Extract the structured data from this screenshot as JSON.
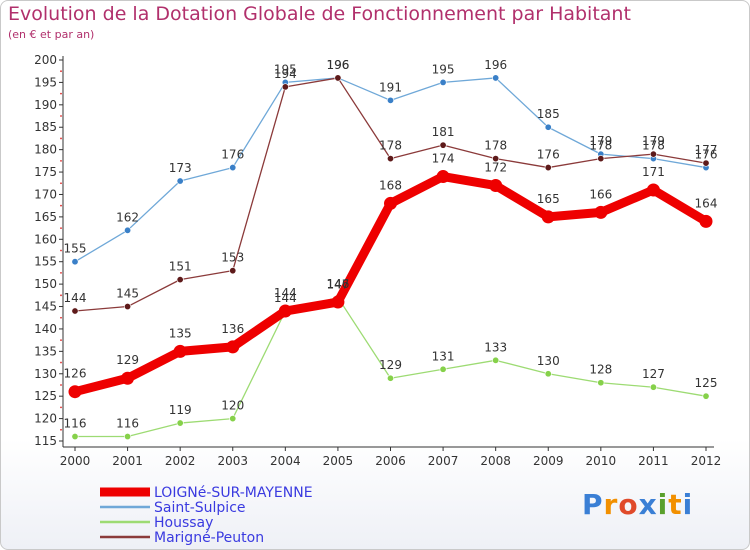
{
  "title": "Evolution de la Dotation Globale de Fonctionnement par Habitant",
  "subtitle": "(en € et par an)",
  "logo": "Proxiti",
  "colors": {
    "title": "#b1306c",
    "axis": "#333333",
    "legend_text": "#3a3ae0"
  },
  "chart_data": {
    "type": "line",
    "title": "Evolution de la Dotation Globale de Fonctionnement par Habitant",
    "subtitle": "(en € et par an)",
    "xlabel": "",
    "ylabel": "",
    "x": [
      "2000",
      "2001",
      "2002",
      "2003",
      "2004",
      "2005",
      "2006",
      "2007",
      "2008",
      "2009",
      "2010",
      "2011",
      "2012"
    ],
    "ylim": [
      115,
      200
    ],
    "yticks": [
      115,
      120,
      125,
      130,
      135,
      140,
      145,
      150,
      155,
      160,
      165,
      170,
      175,
      180,
      185,
      190,
      195,
      200
    ],
    "grid": false,
    "legend_position": "bottom-left",
    "series": [
      {
        "name": "LOIGNé-SUR-MAYENNE",
        "color": "#ee0000",
        "marker": "#ee0000",
        "values": [
          126,
          129,
          135,
          136,
          144,
          146,
          168,
          174,
          172,
          165,
          166,
          171,
          164
        ]
      },
      {
        "name": "Saint-Sulpice",
        "color": "#6fa8d8",
        "marker": "#3a80c8",
        "values": [
          155,
          162,
          173,
          176,
          195,
          196,
          191,
          195,
          196,
          185,
          179,
          178,
          176
        ]
      },
      {
        "name": "Houssay",
        "color": "#9ddb73",
        "marker": "#86d14a",
        "values": [
          116,
          116,
          119,
          120,
          144,
          147,
          129,
          131,
          133,
          130,
          128,
          127,
          125
        ]
      },
      {
        "name": "Marigné-Peuton",
        "color": "#8b3a3a",
        "marker": "#5e1a1a",
        "values": [
          144,
          145,
          151,
          153,
          194,
          196,
          178,
          181,
          178,
          176,
          178,
          179,
          177
        ]
      }
    ]
  }
}
